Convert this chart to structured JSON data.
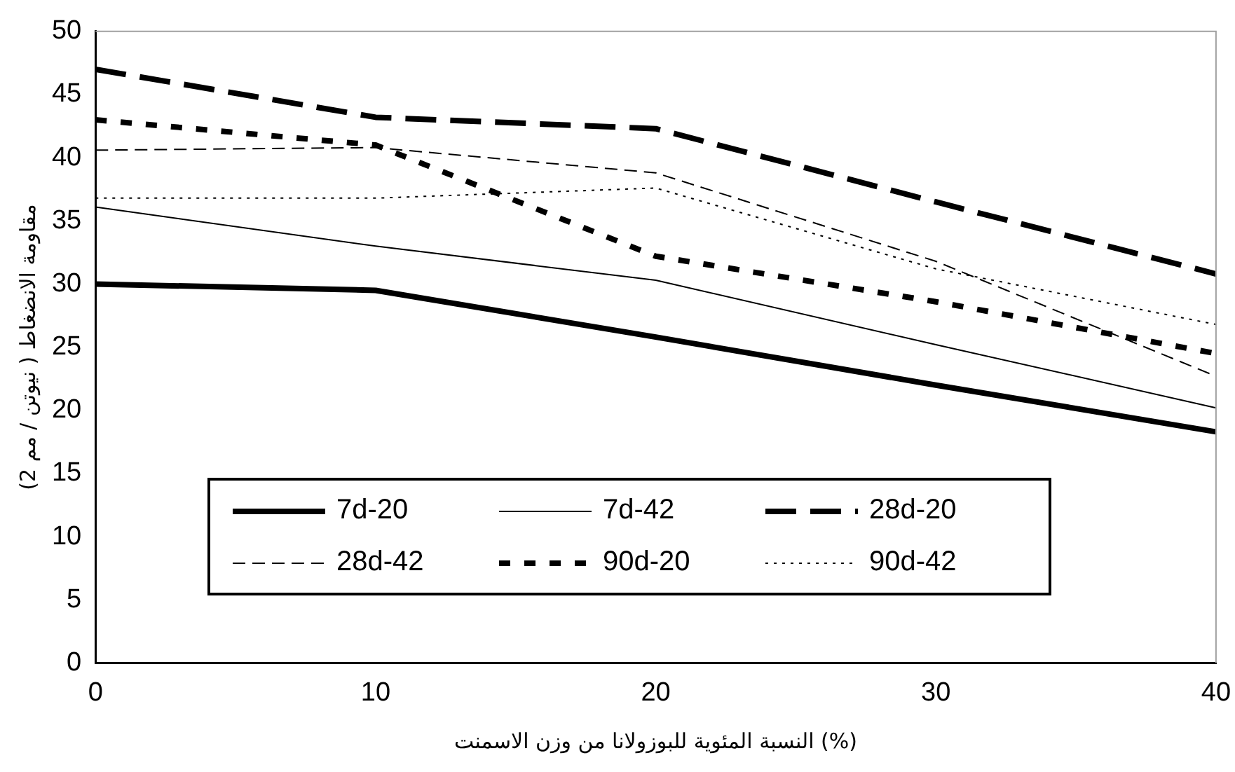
{
  "chart_data": {
    "type": "line",
    "xlabel": "النسبة المئوية للبوزولانا من وزن الاسمنت (%)",
    "ylabel": "مقاومة الانضغاط ( نيوتن / مم 2)",
    "x": [
      0,
      10,
      20,
      30,
      40
    ],
    "xlim": [
      0,
      40
    ],
    "xticks": [
      0,
      10,
      20,
      30,
      40
    ],
    "ylim": [
      0,
      50
    ],
    "yticks": [
      0,
      5,
      10,
      15,
      20,
      25,
      30,
      35,
      40,
      45,
      50
    ],
    "grid": false,
    "legend": "bottom left",
    "marker": "none",
    "series": [
      {
        "name": "7d-20",
        "color": "#000000",
        "line_style": "solid",
        "values": [
          30,
          29.5,
          25.8,
          22,
          18.3
        ]
      },
      {
        "name": "7d-42",
        "color": "#000000",
        "line_style": "solid",
        "values": [
          36.1,
          33,
          30.3,
          25.2,
          20.2
        ]
      },
      {
        "name": "28d-20",
        "color": "#000000",
        "line_style": "dashed",
        "values": [
          47,
          43.2,
          42.3,
          36.5,
          30.8
        ]
      },
      {
        "name": "28d-42",
        "color": "#000000",
        "line_style": "dashed",
        "values": [
          40.6,
          40.8,
          38.8,
          31.8,
          22.7
        ]
      },
      {
        "name": "90d-20",
        "color": "#000000",
        "line_style": "dotted",
        "values": [
          43,
          41,
          32.2,
          28.6,
          24.5
        ]
      },
      {
        "name": "90d-42",
        "color": "#000000",
        "line_style": "dotted",
        "values": [
          36.8,
          36.8,
          37.6,
          31.2,
          26.8
        ]
      }
    ]
  }
}
